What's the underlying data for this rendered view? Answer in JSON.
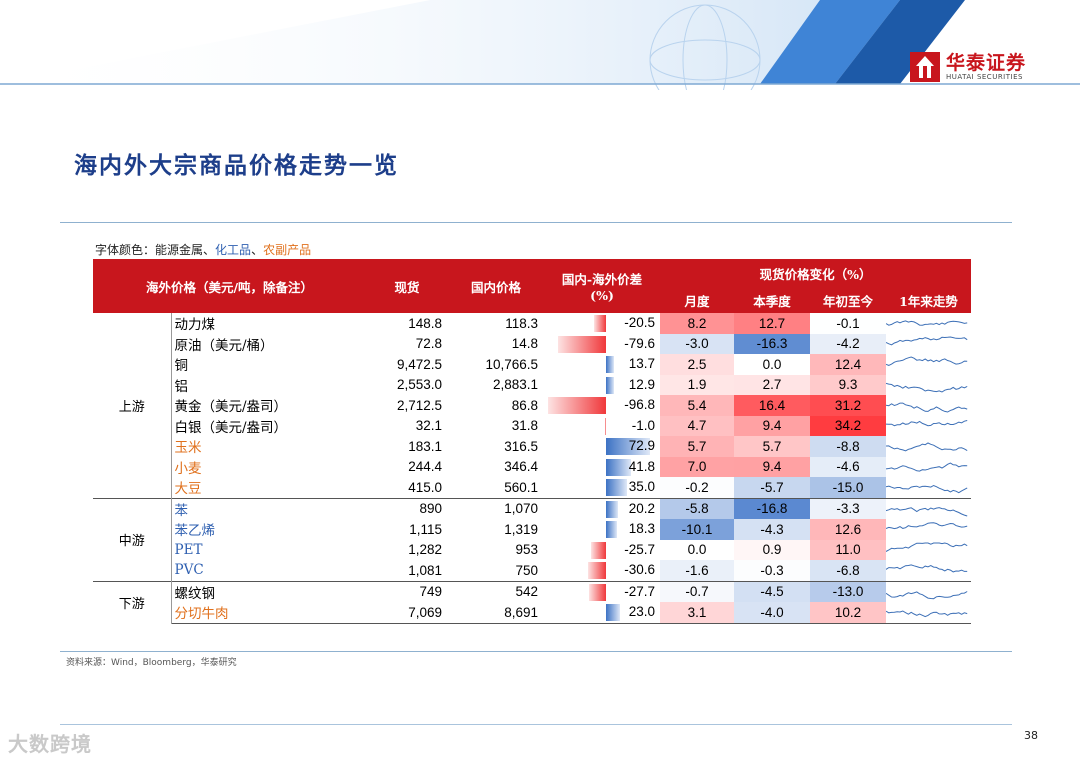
{
  "brand": {
    "name_cn": "华泰证券",
    "name_en": "HUATAI SECURITIES"
  },
  "title": "海内外大宗商品价格走势一览",
  "color_note": {
    "prefix": "字体颜色：",
    "energy_metal": "能源金属",
    "sep1": "、",
    "chemical": "化工品",
    "sep2": "、",
    "agri": "农副产品"
  },
  "table": {
    "headers": {
      "overseas": "海外价格（美元/吨，除备注）",
      "spot": "现货",
      "domestic": "国内价格",
      "spread_line1": "国内-海外价差",
      "spread_line2": "(%)",
      "change_group": "现货价格变化（%）",
      "month": "月度",
      "quarter": "本季度",
      "ytd": "年初至今",
      "trend": "1年来走势"
    },
    "groups": [
      {
        "label": "上游",
        "rows": [
          {
            "name": "动力煤",
            "cat": "energy",
            "spot": "148.8",
            "domestic": "118.3",
            "spread": "-20.5",
            "spread_v": -20.5,
            "month": "8.2",
            "month_v": 8.2,
            "quarter": "12.7",
            "quarter_v": 12.7,
            "ytd": "-0.1",
            "ytd_v": -0.1
          },
          {
            "name": "原油（美元/桶）",
            "cat": "energy",
            "spot": "72.8",
            "domestic": "14.8",
            "spread": "-79.6",
            "spread_v": -79.6,
            "month": "-3.0",
            "month_v": -3.0,
            "quarter": "-16.3",
            "quarter_v": -16.3,
            "ytd": "-4.2",
            "ytd_v": -4.2
          },
          {
            "name": "铜",
            "cat": "energy",
            "spot": "9,472.5",
            "domestic": "10,766.5",
            "spread": "13.7",
            "spread_v": 13.7,
            "month": "2.5",
            "month_v": 2.5,
            "quarter": "0.0",
            "quarter_v": 0.0,
            "ytd": "12.4",
            "ytd_v": 12.4
          },
          {
            "name": "铝",
            "cat": "energy",
            "spot": "2,553.0",
            "domestic": "2,883.1",
            "spread": "12.9",
            "spread_v": 12.9,
            "month": "1.9",
            "month_v": 1.9,
            "quarter": "2.7",
            "quarter_v": 2.7,
            "ytd": "9.3",
            "ytd_v": 9.3
          },
          {
            "name": "黄金（美元/盎司）",
            "cat": "energy",
            "spot": "2,712.5",
            "domestic": "86.8",
            "spread": "-96.8",
            "spread_v": -96.8,
            "month": "5.4",
            "month_v": 5.4,
            "quarter": "16.4",
            "quarter_v": 16.4,
            "ytd": "31.2",
            "ytd_v": 31.2
          },
          {
            "name": "白银（美元/盎司）",
            "cat": "energy",
            "spot": "32.1",
            "domestic": "31.8",
            "spread": "-1.0",
            "spread_v": -1.0,
            "month": "4.7",
            "month_v": 4.7,
            "quarter": "9.4",
            "quarter_v": 9.4,
            "ytd": "34.2",
            "ytd_v": 34.2
          },
          {
            "name": "玉米",
            "cat": "agri",
            "spot": "183.1",
            "domestic": "316.5",
            "spread": "72.9",
            "spread_v": 72.9,
            "month": "5.7",
            "month_v": 5.7,
            "quarter": "5.7",
            "quarter_v": 5.7,
            "ytd": "-8.8",
            "ytd_v": -8.8
          },
          {
            "name": "小麦",
            "cat": "agri",
            "spot": "244.4",
            "domestic": "346.4",
            "spread": "41.8",
            "spread_v": 41.8,
            "month": "7.0",
            "month_v": 7.0,
            "quarter": "9.4",
            "quarter_v": 9.4,
            "ytd": "-4.6",
            "ytd_v": -4.6
          },
          {
            "name": "大豆",
            "cat": "agri",
            "spot": "415.0",
            "domestic": "560.1",
            "spread": "35.0",
            "spread_v": 35.0,
            "month": "-0.2",
            "month_v": -0.2,
            "quarter": "-5.7",
            "quarter_v": -5.7,
            "ytd": "-15.0",
            "ytd_v": -15.0
          }
        ]
      },
      {
        "label": "中游",
        "rows": [
          {
            "name": "苯",
            "cat": "chem",
            "spot": "890",
            "domestic": "1,070",
            "spread": "20.2",
            "spread_v": 20.2,
            "month": "-5.8",
            "month_v": -5.8,
            "quarter": "-16.8",
            "quarter_v": -16.8,
            "ytd": "-3.3",
            "ytd_v": -3.3
          },
          {
            "name": "苯乙烯",
            "cat": "chem",
            "spot": "1,115",
            "domestic": "1,319",
            "spread": "18.3",
            "spread_v": 18.3,
            "month": "-10.1",
            "month_v": -10.1,
            "quarter": "-4.3",
            "quarter_v": -4.3,
            "ytd": "12.6",
            "ytd_v": 12.6
          },
          {
            "name": "PET",
            "cat": "chem",
            "spot": "1,282",
            "domestic": "953",
            "spread": "-25.7",
            "spread_v": -25.7,
            "month": "0.0",
            "month_v": 0.0,
            "quarter": "0.9",
            "quarter_v": 0.9,
            "ytd": "11.0",
            "ytd_v": 11.0
          },
          {
            "name": "PVC",
            "cat": "chem",
            "spot": "1,081",
            "domestic": "750",
            "spread": "-30.6",
            "spread_v": -30.6,
            "month": "-1.6",
            "month_v": -1.6,
            "quarter": "-0.3",
            "quarter_v": -0.3,
            "ytd": "-6.8",
            "ytd_v": -6.8
          }
        ]
      },
      {
        "label": "下游",
        "rows": [
          {
            "name": "螺纹钢",
            "cat": "energy",
            "spot": "749",
            "domestic": "542",
            "spread": "-27.7",
            "spread_v": -27.7,
            "month": "-0.7",
            "month_v": -0.7,
            "quarter": "-4.5",
            "quarter_v": -4.5,
            "ytd": "-13.0",
            "ytd_v": -13.0
          },
          {
            "name": "分切牛肉",
            "cat": "agri",
            "spot": "7,069",
            "domestic": "8,691",
            "spread": "23.0",
            "spread_v": 23.0,
            "month": "3.1",
            "month_v": 3.1,
            "quarter": "-4.0",
            "quarter_v": -4.0,
            "ytd": "10.2",
            "ytd_v": 10.2
          }
        ]
      }
    ]
  },
  "colors": {
    "header_red": "#c8161d",
    "chem_blue": "#2e5fb0",
    "agri_orange": "#e0701c",
    "pos_red": "#f0383b",
    "neg_blue": "#3c72c4"
  },
  "source": "资料来源：Wind，Bloomberg，华泰研究",
  "page_number": "38",
  "watermark": "大数跨境"
}
